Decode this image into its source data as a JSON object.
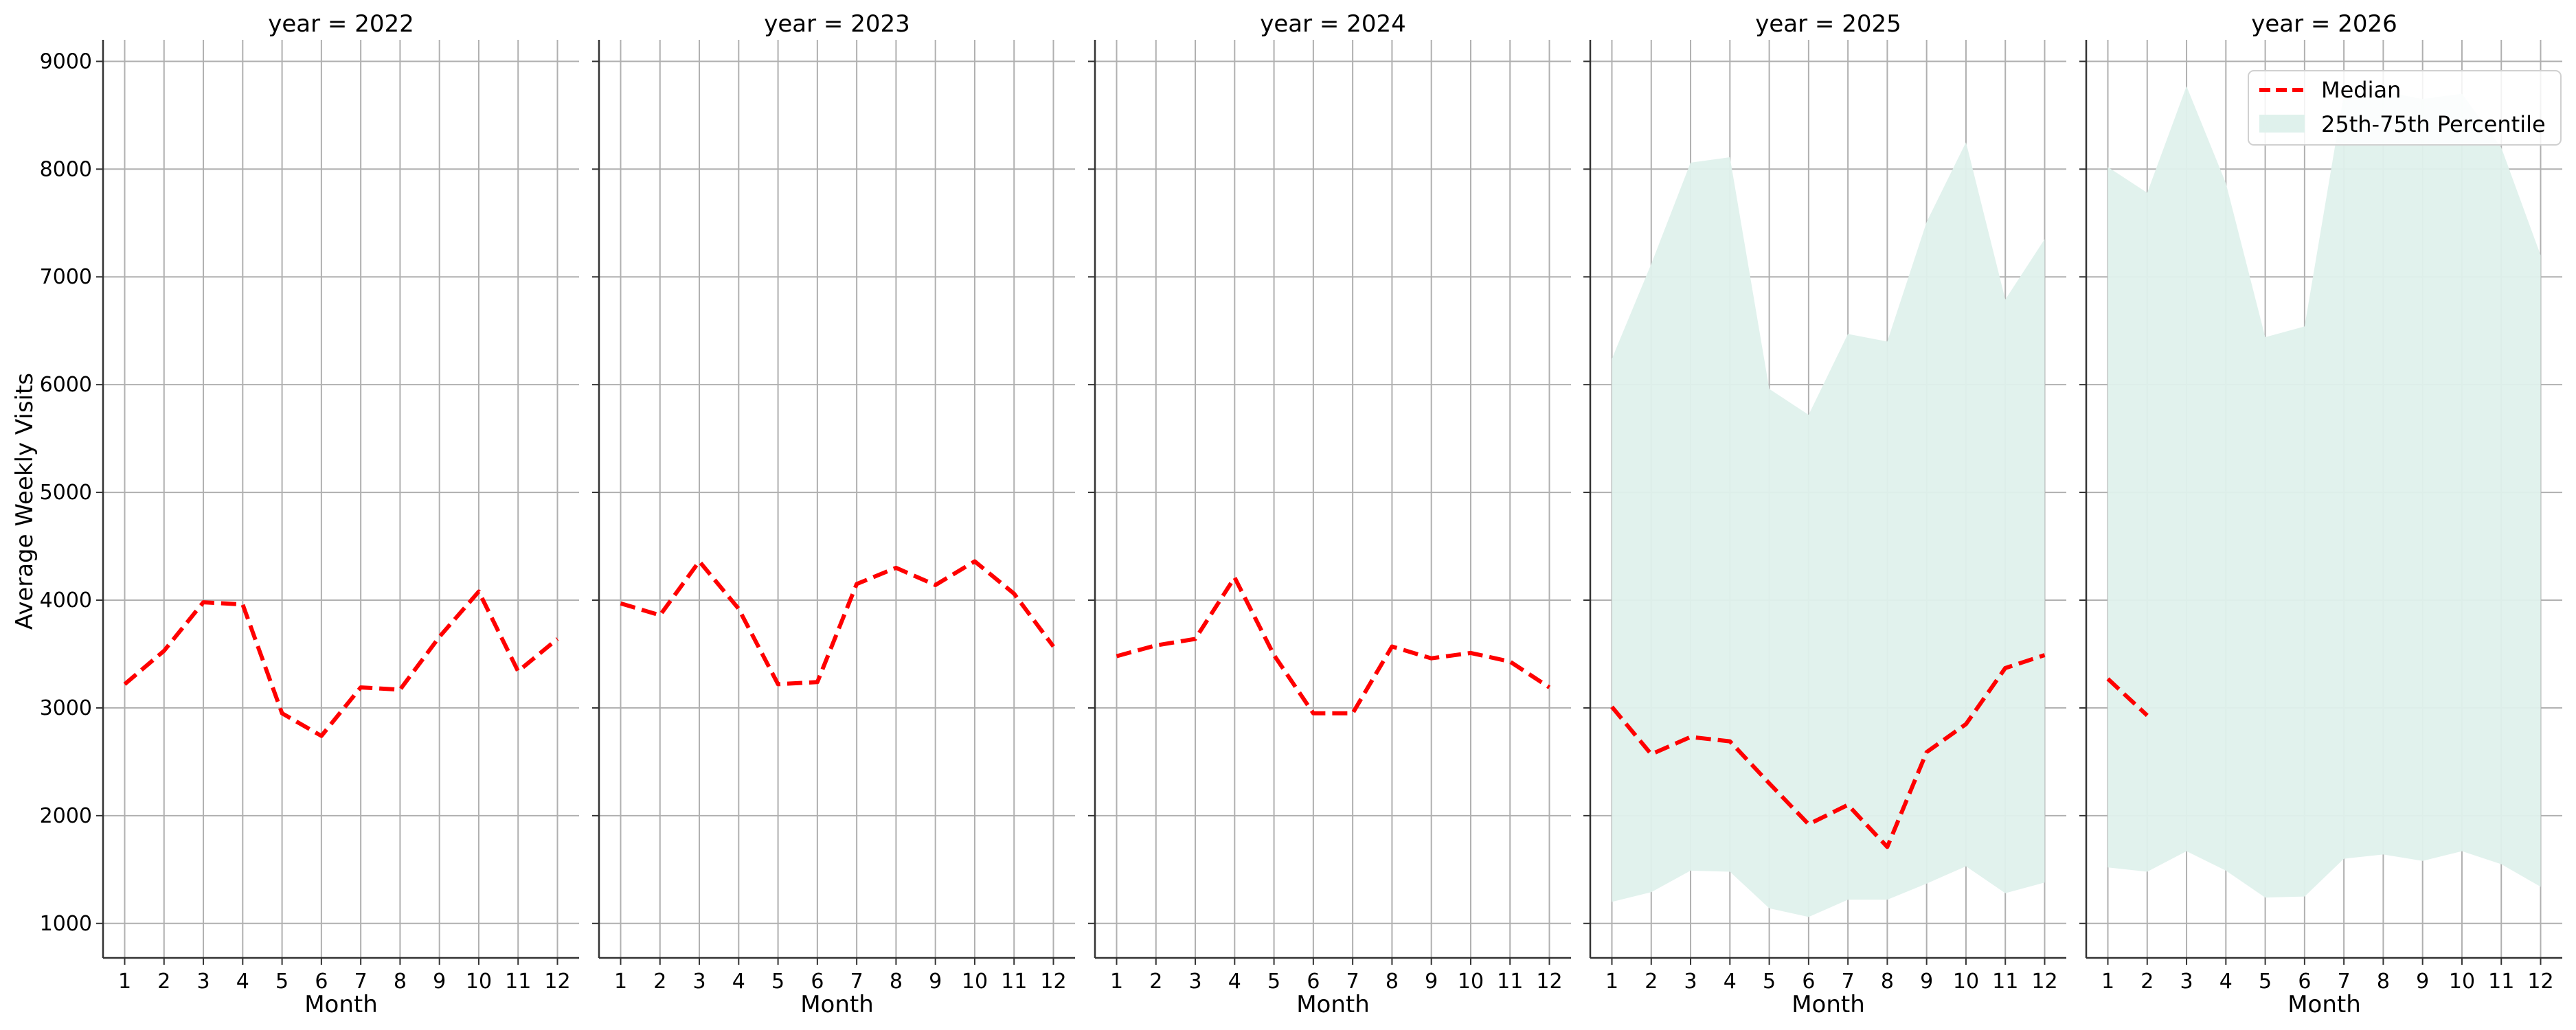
{
  "chart_data": {
    "type": "line",
    "ylabel": "Average Weekly Visits",
    "ylim": [
      680,
      9200
    ],
    "yticks": [
      1000,
      2000,
      3000,
      4000,
      5000,
      6000,
      7000,
      8000,
      9000
    ],
    "x": [
      1,
      2,
      3,
      4,
      5,
      6,
      7,
      8,
      9,
      10,
      11,
      12
    ],
    "xlim": [
      0.45,
      12.55
    ],
    "grid": true,
    "colors": {
      "median": "#ff0000",
      "band": "#dff1ec"
    },
    "legend": {
      "placement": "top-right",
      "panel": 4,
      "entries": [
        "Median",
        "25th-75th Percentile"
      ]
    },
    "panels": [
      {
        "title": "year = 2022",
        "xlabel": "Month",
        "median": [
          3220,
          3530,
          3980,
          3960,
          2950,
          2740,
          3190,
          3170,
          3660,
          4080,
          3340,
          3640
        ]
      },
      {
        "title": "year = 2023",
        "xlabel": "Month",
        "median": [
          3970,
          3860,
          4360,
          3920,
          3220,
          3240,
          4150,
          4300,
          4140,
          4360,
          4060,
          3570
        ]
      },
      {
        "title": "year = 2024",
        "xlabel": "Month",
        "median": [
          3480,
          3580,
          3640,
          4210,
          3490,
          2950,
          2950,
          3570,
          3460,
          3510,
          3430,
          3190
        ]
      },
      {
        "title": "year = 2025",
        "xlabel": "Month",
        "median": [
          3010,
          2570,
          2730,
          2690,
          2300,
          1920,
          2100,
          1710,
          2590,
          2850,
          3370,
          3490
        ],
        "p25": [
          1200,
          1290,
          1490,
          1480,
          1140,
          1060,
          1220,
          1220,
          1370,
          1530,
          1280,
          1380
        ],
        "p75": [
          6240,
          7120,
          8060,
          8110,
          5960,
          5720,
          6470,
          6400,
          7510,
          8250,
          6790,
          7350
        ]
      },
      {
        "title": "year = 2026",
        "xlabel": "Month",
        "median": [
          3270,
          2930
        ],
        "p25": [
          1520,
          1480,
          1670,
          1490,
          1240,
          1250,
          1600,
          1640,
          1580,
          1670,
          1550,
          1340
        ],
        "p75": [
          8020,
          7780,
          8770,
          7870,
          6440,
          6540,
          8700,
          8720,
          8650,
          8700,
          8200,
          7200
        ]
      }
    ]
  }
}
